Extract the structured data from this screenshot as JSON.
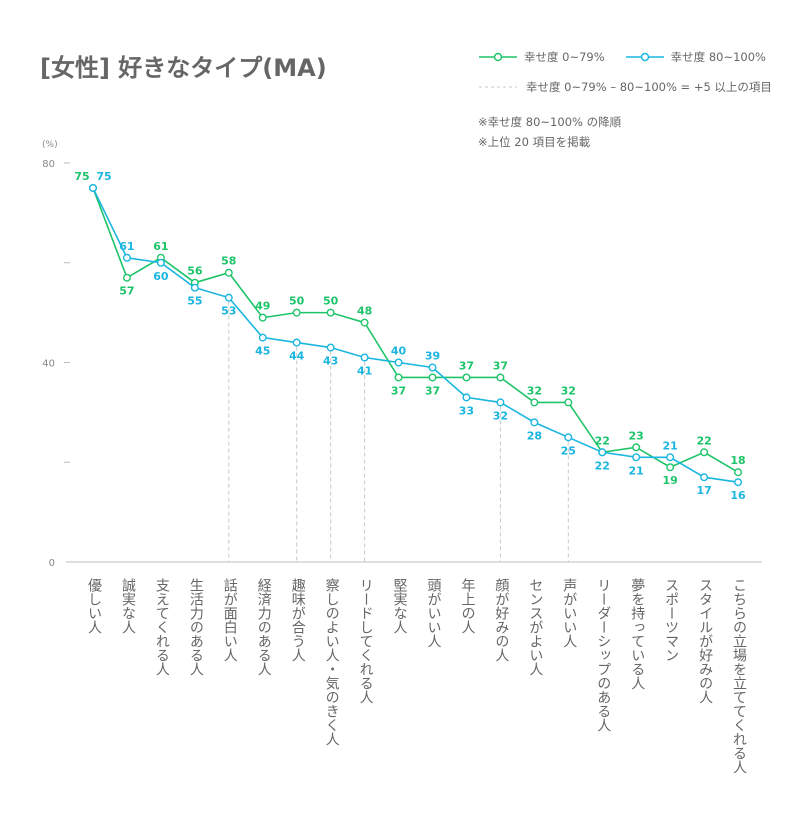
{
  "title": "[女性] 好きなタイプ(MA)",
  "legend": {
    "series_a": "幸せ度 0~79%",
    "series_b": "幸せ度 80~100%",
    "dashed": "幸せ度 0~79% – 80~100% = +5 以上の項目"
  },
  "notes": [
    "※幸せ度 80~100% の降順",
    "※上位 20 項目を掲載"
  ],
  "colors": {
    "series_a": "#1ec46a",
    "series_b": "#1ab6e0",
    "axis": "#cccccc",
    "text": "#666666"
  },
  "chart_data": {
    "type": "line",
    "title": "[女性] 好きなタイプ(MA)",
    "ylabel": "(%)",
    "ylim": [
      0,
      80
    ],
    "yticks": [
      0,
      20,
      40,
      60,
      80
    ],
    "ytick_labels": [
      "0",
      "",
      "40",
      "",
      "80"
    ],
    "grid": false,
    "legend_position": "top-right",
    "categories": [
      "優しい人",
      "誠実な人",
      "支えてくれる人",
      "生活力のある人",
      "話が面白い人",
      "経済力のある人",
      "趣味が合う人",
      "察しのよい人・気のきく人",
      "リードしてくれる人",
      "堅実な人",
      "頭がいい人",
      "年上の人",
      "顔が好みの人",
      "センスがよい人",
      "声がいい人",
      "リーダーシップのある人",
      "夢を持っている人",
      "スポーツマン",
      "スタイルが好みの人",
      "こちらの立場を立ててくれる人"
    ],
    "series": [
      {
        "name": "幸せ度 0~79%",
        "values": [
          75,
          57,
          61,
          56,
          58,
          49,
          50,
          50,
          48,
          37,
          37,
          37,
          37,
          32,
          32,
          22,
          23,
          19,
          22,
          18
        ]
      },
      {
        "name": "幸せ度 80~100%",
        "values": [
          75,
          61,
          60,
          55,
          53,
          45,
          44,
          43,
          41,
          40,
          39,
          33,
          32,
          28,
          25,
          22,
          21,
          21,
          17,
          16
        ]
      }
    ],
    "highlighted_categories": [
      "話が面白い人",
      "趣味が合う人",
      "察しのよい人・気のきく人",
      "リードしてくれる人",
      "顔が好みの人",
      "声がいい人"
    ]
  }
}
